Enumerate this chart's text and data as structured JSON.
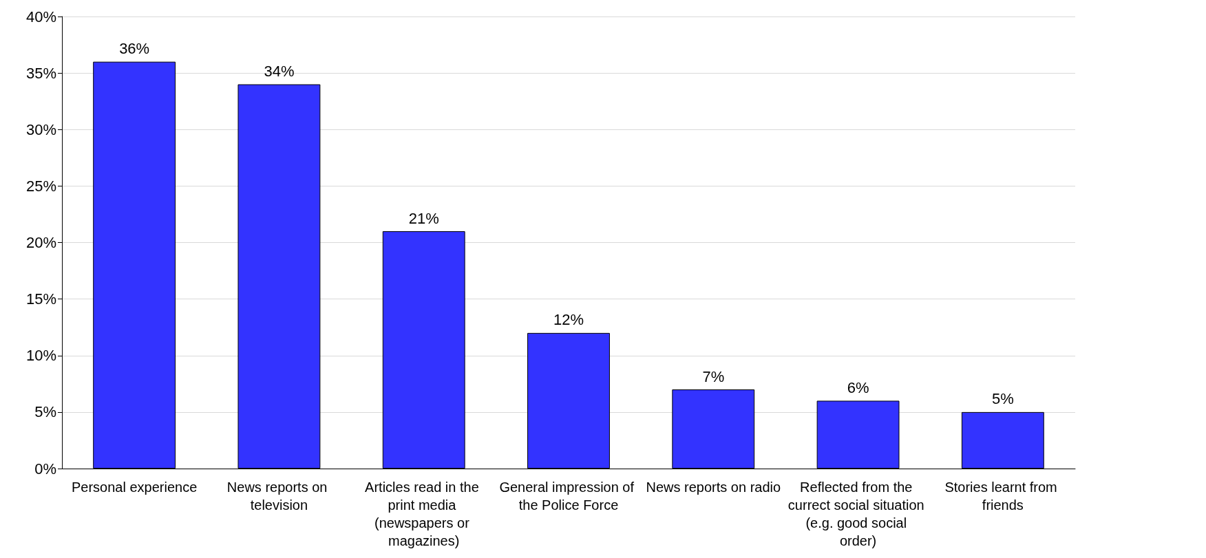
{
  "chart_data": {
    "type": "bar",
    "categories": [
      "Personal experience",
      "News reports on television",
      "Articles read in the print media (newspapers or magazines)",
      "General impression of the Police Force",
      "News reports on radio",
      "Reflected from the currect social situation (e.g. good social order)",
      "Stories learnt from friends"
    ],
    "values": [
      36,
      34,
      21,
      12,
      7,
      6,
      5
    ],
    "value_labels": [
      "36%",
      "34%",
      "21%",
      "12%",
      "7%",
      "6%",
      "5%"
    ],
    "color": "#3333ff",
    "ylim": [
      0,
      40
    ],
    "yticks": [
      {
        "value": 0,
        "label": "0%"
      },
      {
        "value": 5,
        "label": "5%"
      },
      {
        "value": 10,
        "label": "10%"
      },
      {
        "value": 15,
        "label": "15%"
      },
      {
        "value": 20,
        "label": "20%"
      },
      {
        "value": 25,
        "label": "25%"
      },
      {
        "value": 30,
        "label": "30%"
      },
      {
        "value": 35,
        "label": "35%"
      },
      {
        "value": 40,
        "label": "40%"
      }
    ],
    "grid": "y"
  }
}
